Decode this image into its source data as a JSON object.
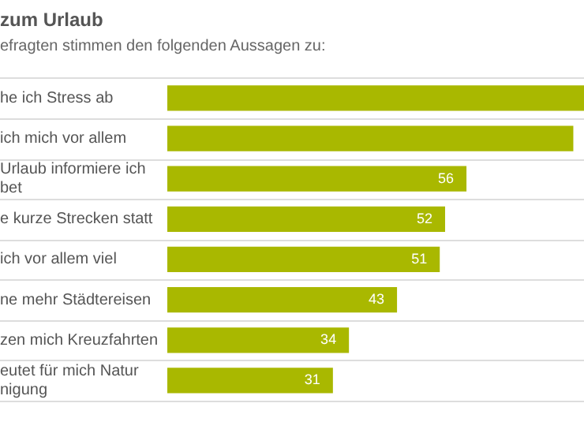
{
  "chart_data": {
    "type": "bar",
    "orientation": "horizontal",
    "title": "zum Urlaub",
    "subtitle": "efragten stimmen den folgenden Aussagen zu:",
    "categories": [
      "he ich Stress ab",
      "ich mich vor allem",
      "Urlaub informiere ich\nbet",
      "e kurze Strecken statt",
      "ich vor allem viel",
      "ne mehr Städtereisen",
      "zen mich Kreuzfahrten",
      "eutet für mich Natur\nnigung"
    ],
    "values": [
      78,
      76,
      56,
      52,
      51,
      43,
      34,
      31
    ],
    "value_labels": [
      null,
      null,
      "56",
      "52",
      "51",
      "43",
      "34",
      "31"
    ],
    "color": "#a9b800",
    "xlim": [
      0,
      78
    ],
    "grid": "y",
    "legend": false,
    "tick_labels": "y"
  }
}
